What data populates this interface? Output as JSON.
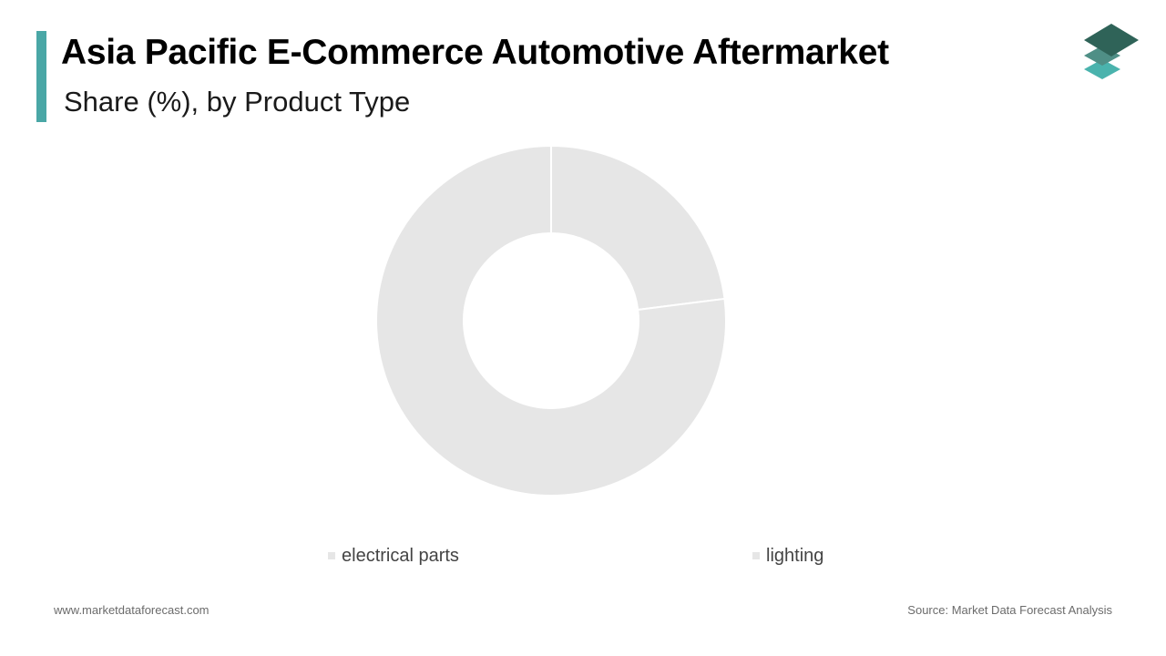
{
  "header": {
    "title": "Asia Pacific E-Commerce Automotive Aftermarket",
    "subtitle": "Share (%), by Product Type"
  },
  "chart_data": {
    "type": "pie",
    "donut": true,
    "categories": [
      "electrical parts",
      "lighting"
    ],
    "values": [
      23,
      77
    ],
    "colors": [
      "#e6e6e6",
      "#e6e6e6"
    ],
    "legend_position": "bottom"
  },
  "footer": {
    "website": "www.marketdataforecast.com",
    "source": "Source: Market Data Forecast Analysis"
  },
  "colors": {
    "accent": "#4aa7a6",
    "logo_dark": "#2f6358",
    "logo_mid": "#4f8f86",
    "logo_light": "#4ab3ad"
  },
  "icons": {
    "logo": "stacked-layers-logo"
  }
}
